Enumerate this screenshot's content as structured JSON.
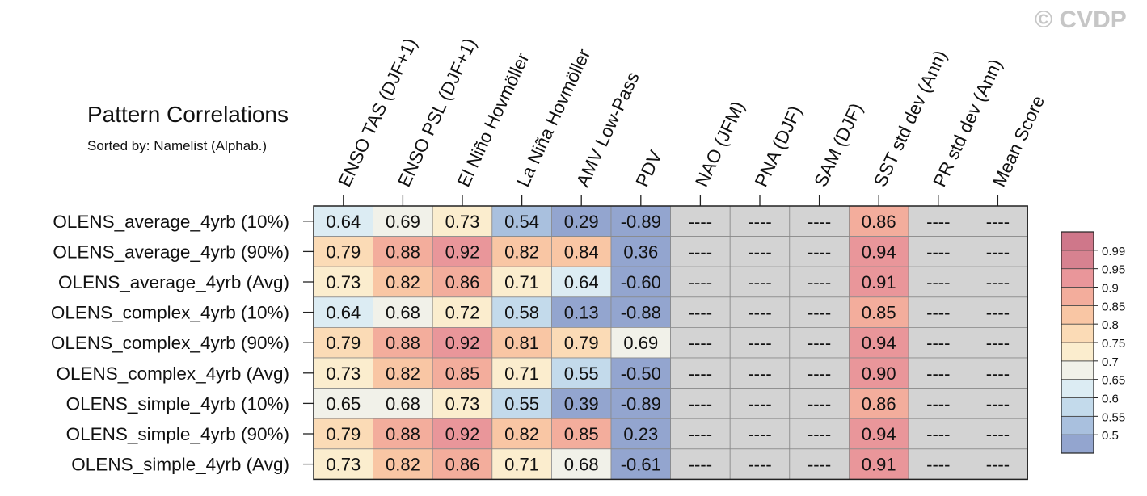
{
  "title": "Pattern Correlations",
  "subtitle": "Sorted by: Namelist (Alphab.)",
  "watermark": "© CVDP",
  "chart_data": {
    "type": "table",
    "title": "Pattern Correlations",
    "subtitle": "Sorted by: Namelist (Alphab.)",
    "columns": [
      "ENSO TAS (DJF+1)",
      "ENSO PSL (DJF+1)",
      "El Niño Hovmöller",
      "La Niña Hovmöller",
      "AMV Low-Pass",
      "PDV",
      "NAO (JFM)",
      "PNA (DJF)",
      "SAM (DJF)",
      "SST std dev (Ann)",
      "PR std dev (Ann)",
      "Mean Score"
    ],
    "rows": [
      "OLENS_average_4yrb (10%)",
      "OLENS_average_4yrb (90%)",
      "OLENS_average_4yrb (Avg)",
      "OLENS_complex_4yrb (10%)",
      "OLENS_complex_4yrb (90%)",
      "OLENS_complex_4yrb (Avg)",
      "OLENS_simple_4yrb (10%)",
      "OLENS_simple_4yrb (90%)",
      "OLENS_simple_4yrb (Avg)"
    ],
    "missing_label": "----",
    "values": [
      [
        "0.64",
        "0.69",
        "0.73",
        "0.54",
        "0.29",
        "-0.89",
        "----",
        "----",
        "----",
        "0.86",
        "----",
        "----"
      ],
      [
        "0.79",
        "0.88",
        "0.92",
        "0.82",
        "0.84",
        "0.36",
        "----",
        "----",
        "----",
        "0.94",
        "----",
        "----"
      ],
      [
        "0.73",
        "0.82",
        "0.86",
        "0.71",
        "0.64",
        "-0.60",
        "----",
        "----",
        "----",
        "0.91",
        "----",
        "----"
      ],
      [
        "0.64",
        "0.68",
        "0.72",
        "0.58",
        "0.13",
        "-0.88",
        "----",
        "----",
        "----",
        "0.85",
        "----",
        "----"
      ],
      [
        "0.79",
        "0.88",
        "0.92",
        "0.81",
        "0.79",
        "0.69",
        "----",
        "----",
        "----",
        "0.94",
        "----",
        "----"
      ],
      [
        "0.73",
        "0.82",
        "0.85",
        "0.71",
        "0.55",
        "-0.50",
        "----",
        "----",
        "----",
        "0.90",
        "----",
        "----"
      ],
      [
        "0.65",
        "0.68",
        "0.73",
        "0.55",
        "0.39",
        "-0.89",
        "----",
        "----",
        "----",
        "0.86",
        "----",
        "----"
      ],
      [
        "0.79",
        "0.88",
        "0.92",
        "0.82",
        "0.85",
        "0.23",
        "----",
        "----",
        "----",
        "0.94",
        "----",
        "----"
      ],
      [
        "0.73",
        "0.82",
        "0.86",
        "0.71",
        "0.68",
        "-0.61",
        "----",
        "----",
        "----",
        "0.91",
        "----",
        "----"
      ]
    ],
    "missing_color": "#d3d3d3",
    "colorbar": {
      "labels": [
        "0.99",
        "0.95",
        "0.9",
        "0.85",
        "0.8",
        "0.75",
        "0.7",
        "0.65",
        "0.6",
        "0.55",
        "0.5"
      ],
      "thresholds": [
        0.5,
        0.55,
        0.6,
        0.65,
        0.7,
        0.75,
        0.8,
        0.85,
        0.9,
        0.95,
        0.99
      ],
      "colors": [
        "#93a5cf",
        "#a9c0de",
        "#c3daeb",
        "#dcecf3",
        "#f1f1e9",
        "#fbedce",
        "#fbdbb6",
        "#f9c6a4",
        "#f3ad9c",
        "#e9969a",
        "#d78290",
        "#cf778a"
      ]
    }
  }
}
